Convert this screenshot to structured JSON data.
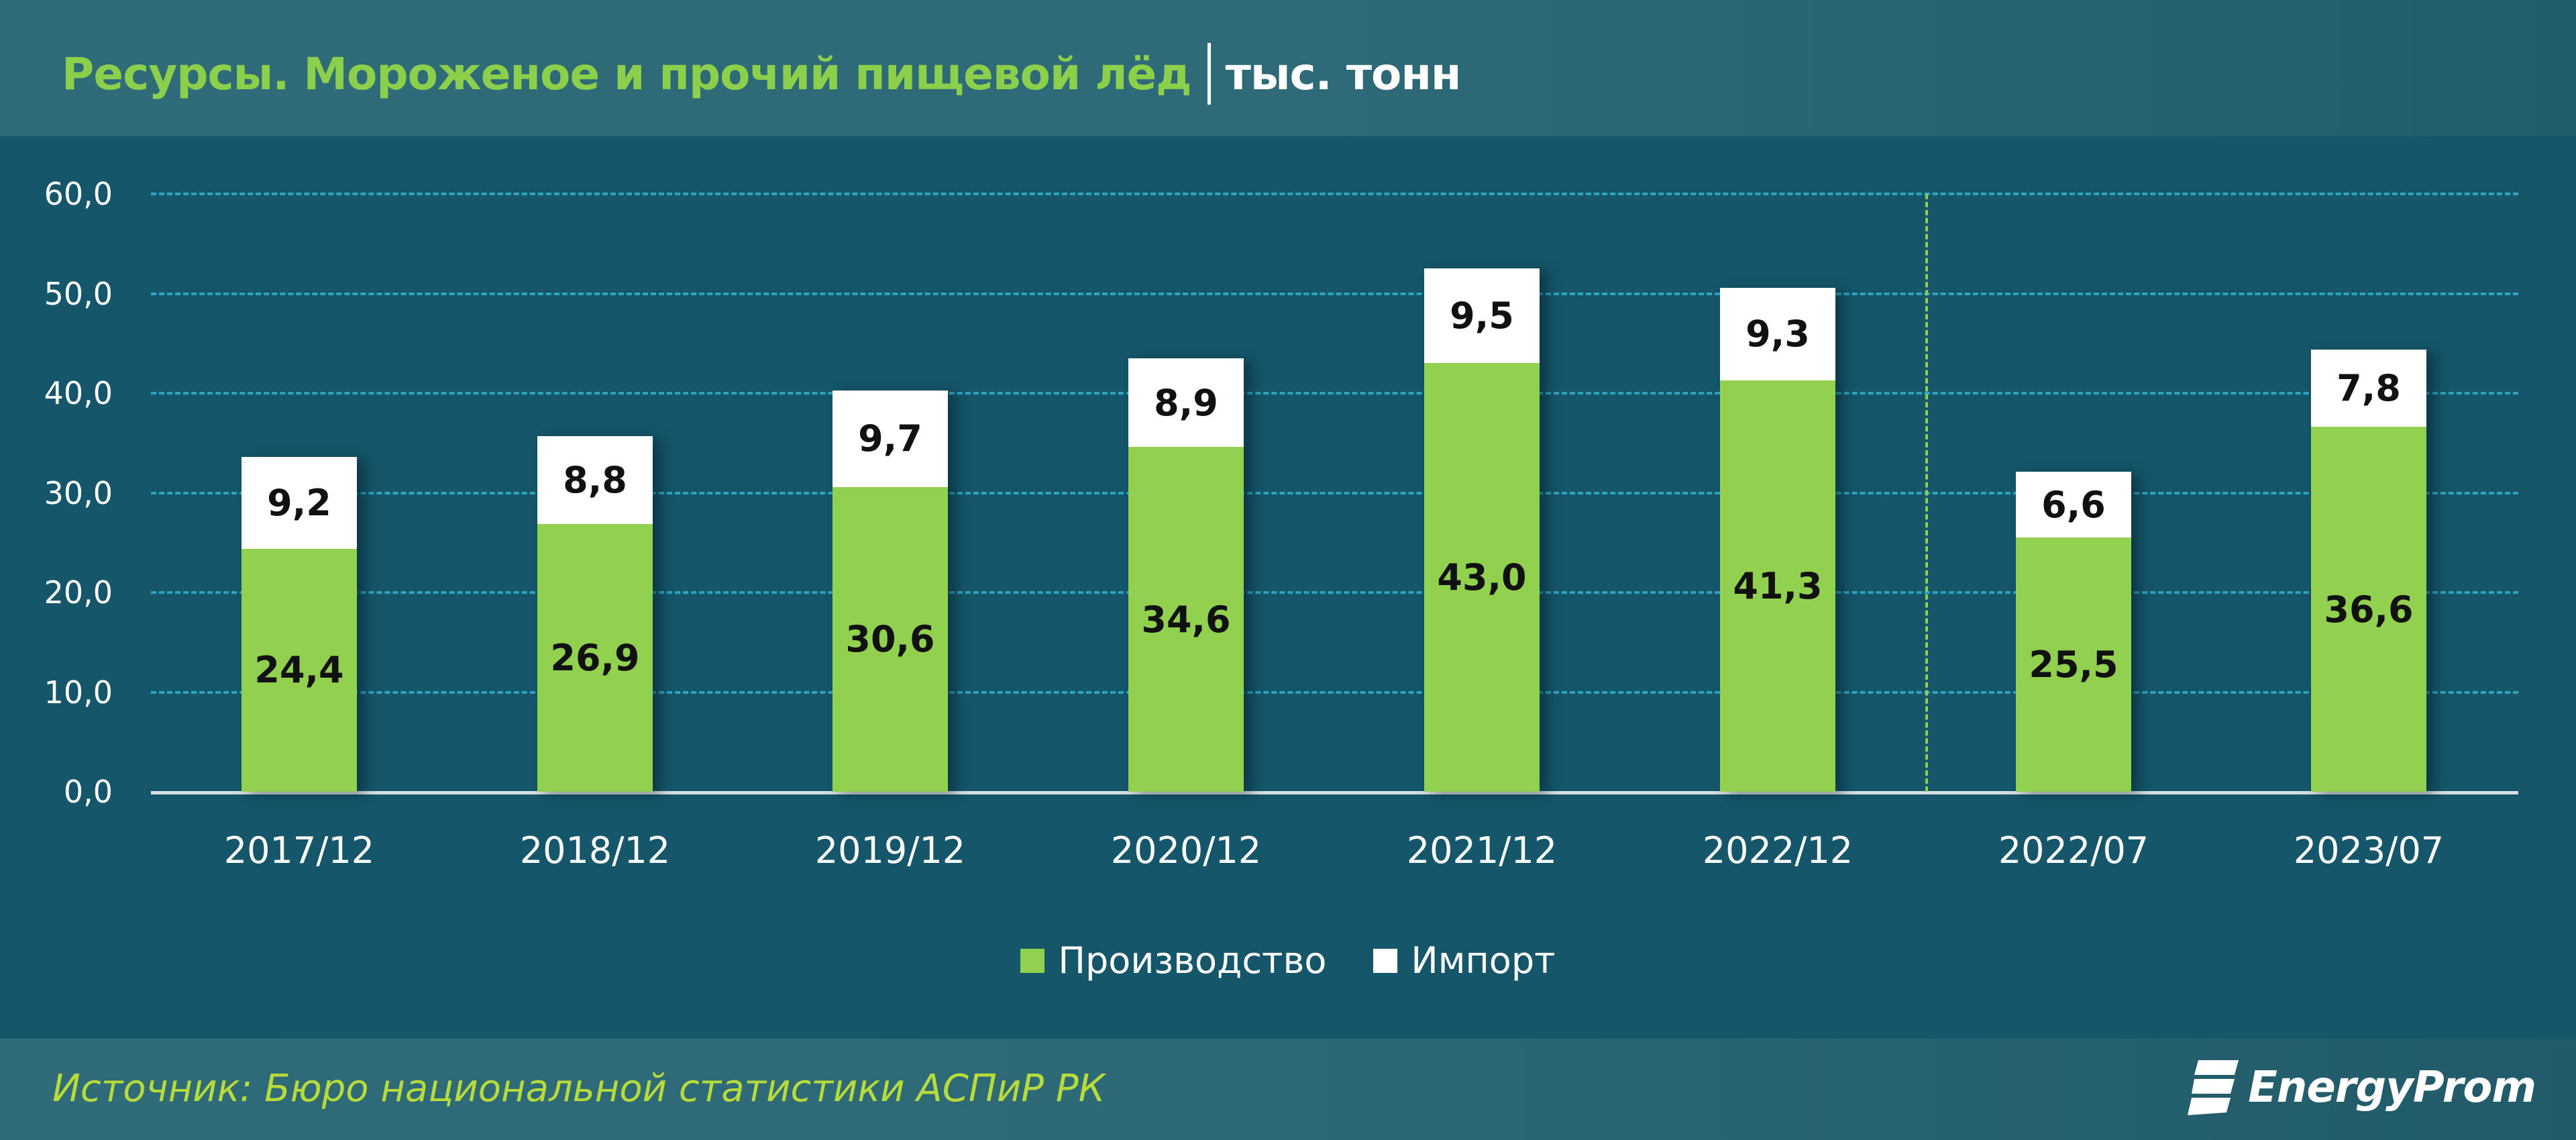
{
  "header": {
    "title": "Ресурсы. Мороженое и прочий пищевой лёд",
    "unit": "тыс. тонн"
  },
  "colors": {
    "production": "#92d050",
    "import": "#ffffff",
    "background": "#15566a",
    "title": "#8ccf4a",
    "gridline": "#2ea3c0"
  },
  "legend": {
    "production_label": "Производство",
    "import_label": "Импорт"
  },
  "footer": {
    "source": "Источник: Бюро национальной статистики АСПиР РК",
    "logo": "EnergyProm"
  },
  "chart_data": {
    "type": "bar",
    "stacked": true,
    "title": "Ресурсы. Мороженое и прочий пищевой лёд | тыс. тонн",
    "xlabel": "",
    "ylabel": "тыс. тонн",
    "ylim": [
      0,
      60
    ],
    "yticks": [
      "0,0",
      "10,0",
      "20,0",
      "30,0",
      "40,0",
      "50,0",
      "60,0"
    ],
    "grid": true,
    "legend_position": "bottom",
    "categories": [
      "2017/12",
      "2018/12",
      "2019/12",
      "2020/12",
      "2021/12",
      "2022/12",
      "2022/07",
      "2023/07"
    ],
    "series": [
      {
        "name": "Производство",
        "values": [
          24.4,
          26.9,
          30.6,
          34.6,
          43.0,
          41.3,
          25.5,
          36.6
        ],
        "labels": [
          "24,4",
          "26,9",
          "30,6",
          "34,6",
          "43,0",
          "41,3",
          "25,5",
          "36,6"
        ]
      },
      {
        "name": "Импорт",
        "values": [
          9.2,
          8.8,
          9.7,
          8.9,
          9.5,
          9.3,
          6.6,
          7.8
        ],
        "labels": [
          "9,2",
          "8,8",
          "9,7",
          "8,9",
          "9,5",
          "9,3",
          "6,6",
          "7,8"
        ]
      }
    ],
    "annotations": [
      "Vertical dashed divider between 2022/12 and 2022/07"
    ]
  }
}
